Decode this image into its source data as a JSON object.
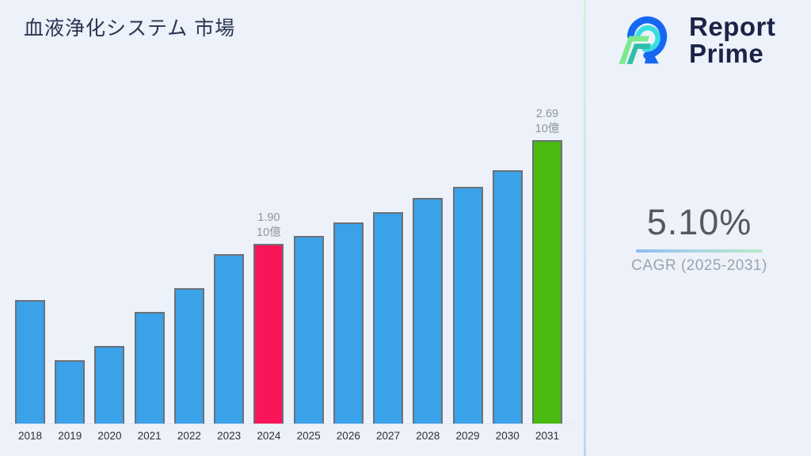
{
  "title": "血液浄化システム 市場",
  "logo": {
    "line1": "Report",
    "line2": "Prime"
  },
  "cagr": {
    "value": "5.10%",
    "label": "CAGR (2025-2031)"
  },
  "colors": {
    "background": "#ECF1FA",
    "bar_default": "#3AA2E8",
    "bar_2024": "#FA1559",
    "bar_2031": "#4ABB11",
    "bar_border": "#6d7076",
    "annotation_text": "#8F959E",
    "title_text": "#2A3550",
    "logo_navy": "#1B2447"
  },
  "chart_data": {
    "type": "bar",
    "title": "血液浄化システム 市場",
    "xlabel": "",
    "ylabel": "",
    "unit": "10億",
    "categories": [
      "2018",
      "2019",
      "2020",
      "2021",
      "2022",
      "2023",
      "2024",
      "2025",
      "2026",
      "2027",
      "2028",
      "2029",
      "2030",
      "2031"
    ],
    "values": [
      1.47,
      1.01,
      1.12,
      1.38,
      1.56,
      1.82,
      1.9,
      1.96,
      2.06,
      2.14,
      2.25,
      2.33,
      2.46,
      2.69
    ],
    "ylim": [
      0.53,
      2.85
    ],
    "grid": false,
    "legend": "none",
    "bar_colors": {
      "default": "#3AA2E8",
      "2024": "#FA1559",
      "2031": "#4ABB11"
    },
    "annotations": [
      {
        "category": "2024",
        "lines": [
          "1.90",
          "10億"
        ]
      },
      {
        "category": "2031",
        "lines": [
          "2.69",
          "10億"
        ]
      }
    ]
  }
}
